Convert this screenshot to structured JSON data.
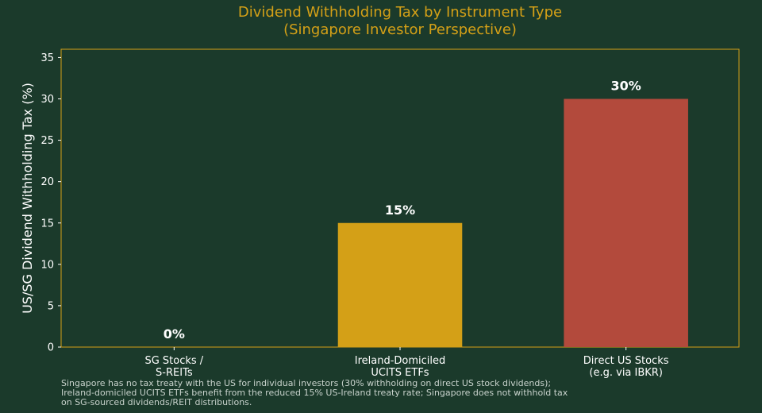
{
  "chart_data": {
    "type": "bar",
    "title": [
      "Dividend Withholding Tax by Instrument Type",
      "(Singapore Investor Perspective)"
    ],
    "ylabel": "US/SG Dividend Withholding Tax (%)",
    "xlabel": "",
    "ylim": [
      0,
      36
    ],
    "yticks": [
      0,
      5,
      10,
      15,
      20,
      25,
      30,
      35
    ],
    "grid": false,
    "categories": [
      [
        "SG Stocks /",
        "S-REITs"
      ],
      [
        "Ireland-Domiciled",
        "UCITS ETFs"
      ],
      [
        "Direct US Stocks",
        "(e.g. via IBKR)"
      ]
    ],
    "values": [
      0,
      15,
      30
    ],
    "data_labels": [
      "0%",
      "15%",
      "30%"
    ],
    "colors": [
      "#2e7d4f",
      "#d4a017",
      "#b34a3c"
    ]
  },
  "footnote": [
    "Singapore has no tax treaty with the US for individual investors (30% withholding on direct US stock dividends);",
    "Ireland-domiciled UCITS ETFs benefit from the reduced 15% US-Ireland treaty rate; Singapore does not withhold tax",
    "on SG-sourced dividends/REIT distributions."
  ],
  "theme": {
    "background": "#1b3a2b",
    "frame": "#d4a017",
    "title": "#d4a017",
    "text": "#ffffff"
  }
}
